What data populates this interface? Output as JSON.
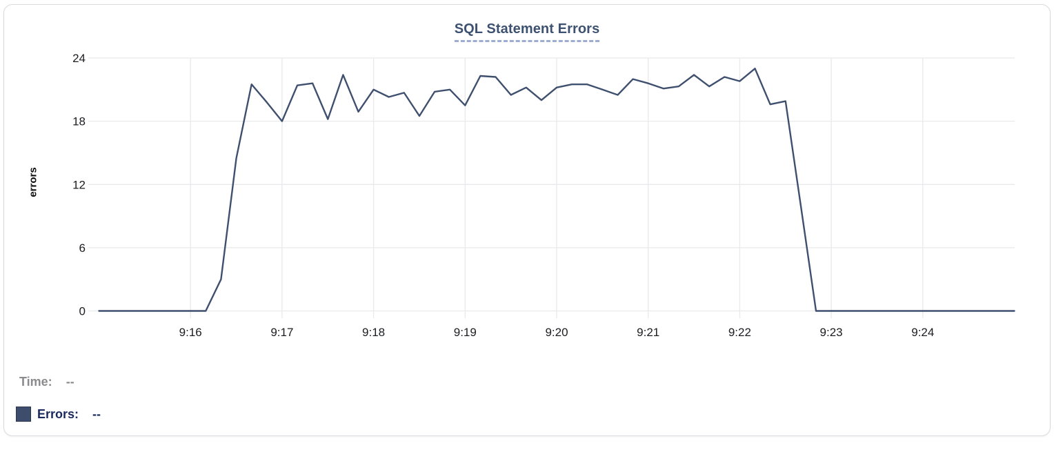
{
  "card": {
    "title": "SQL Statement Errors"
  },
  "chart_data": {
    "type": "line",
    "title": "SQL Statement Errors",
    "xlabel": "",
    "ylabel": "errors",
    "series_name": "Errors",
    "line_color": "#3f4f6e",
    "grid_color": "#e8e9eb",
    "tick_label_color": "#1b1c20",
    "grid": true,
    "legend_position": "bottom-left",
    "ylim": [
      0,
      24
    ],
    "yticks": [
      0,
      6,
      12,
      18,
      24
    ],
    "xticks": [
      "9:16",
      "9:17",
      "9:18",
      "9:19",
      "9:20",
      "9:21",
      "9:22",
      "9:23",
      "9:24"
    ],
    "x": [
      "9:15:00",
      "9:15:10",
      "9:15:20",
      "9:15:30",
      "9:15:40",
      "9:15:50",
      "9:16:00",
      "9:16:10",
      "9:16:20",
      "9:16:30",
      "9:16:40",
      "9:16:50",
      "9:17:00",
      "9:17:10",
      "9:17:20",
      "9:17:30",
      "9:17:40",
      "9:17:50",
      "9:18:00",
      "9:18:10",
      "9:18:20",
      "9:18:30",
      "9:18:40",
      "9:18:50",
      "9:19:00",
      "9:19:10",
      "9:19:20",
      "9:19:30",
      "9:19:40",
      "9:19:50",
      "9:20:00",
      "9:20:10",
      "9:20:20",
      "9:20:30",
      "9:20:40",
      "9:20:50",
      "9:21:00",
      "9:21:10",
      "9:21:20",
      "9:21:30",
      "9:21:40",
      "9:21:50",
      "9:22:00",
      "9:22:10",
      "9:22:20",
      "9:22:30",
      "9:22:40",
      "9:22:50",
      "9:23:00",
      "9:23:10",
      "9:23:20",
      "9:23:30",
      "9:23:40",
      "9:23:50",
      "9:24:00",
      "9:24:10",
      "9:24:20",
      "9:24:30",
      "9:24:40",
      "9:24:50",
      "9:25:00"
    ],
    "values": [
      0,
      0,
      0,
      0,
      0,
      0,
      0,
      0,
      3,
      14.5,
      21.5,
      19.8,
      18,
      21.4,
      21.6,
      18.2,
      22.4,
      18.9,
      21,
      20.3,
      20.7,
      18.5,
      20.8,
      21,
      19.5,
      22.3,
      22.2,
      20.5,
      21.2,
      20,
      21.2,
      21.5,
      21.5,
      21,
      20.5,
      22,
      21.6,
      21.1,
      21.3,
      22.4,
      21.3,
      22.2,
      21.8,
      23,
      19.6,
      19.9,
      10,
      0,
      0,
      0,
      0,
      0,
      0,
      0,
      0,
      0,
      0,
      0,
      0,
      0,
      0
    ]
  },
  "readout": {
    "time_label": "Time:",
    "time_value": "--",
    "errors_label": "Errors:",
    "errors_value": "--",
    "swatch_color": "#3e4d6b"
  }
}
